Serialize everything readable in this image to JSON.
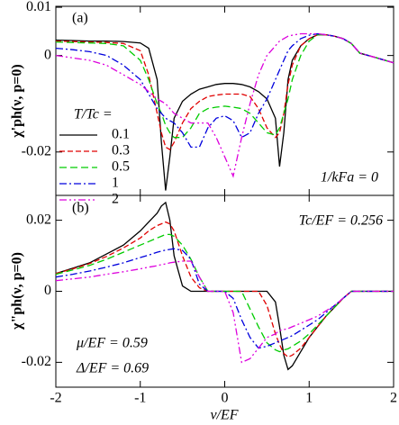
{
  "chart_data": [
    {
      "type": "line",
      "panel_label": "(a)",
      "ylabel": "χ'ph(ν, p=0)",
      "annotation": "1/kFa = 0",
      "legend_title": "T/Tc =",
      "legend": "left",
      "xlim": [
        -2,
        2
      ],
      "ylim": [
        -0.029,
        0.0102
      ],
      "yticks": [
        0.01,
        0,
        -0.02
      ],
      "x": [
        -2,
        -1.8,
        -1.6,
        -1.4,
        -1.2,
        -1,
        -0.9,
        -0.8,
        -0.75,
        -0.7,
        -0.65,
        -0.6,
        -0.5,
        -0.4,
        -0.3,
        -0.2,
        -0.1,
        0,
        0.1,
        0.2,
        0.3,
        0.4,
        0.5,
        0.6,
        0.65,
        0.7,
        0.75,
        0.8,
        0.9,
        1,
        1.1,
        1.2,
        1.3,
        1.4,
        1.5,
        1.6,
        1.8,
        2
      ],
      "series": [
        {
          "name": "0.1",
          "color": "#000000",
          "values": [
            0.0032,
            0.0031,
            0.003,
            0.003,
            0.0029,
            0.0026,
            0.0015,
            -0.005,
            -0.018,
            -0.028,
            -0.021,
            -0.013,
            -0.0095,
            -0.008,
            -0.007,
            -0.0065,
            -0.006,
            -0.0058,
            -0.0058,
            -0.006,
            -0.0065,
            -0.0075,
            -0.009,
            -0.013,
            -0.023,
            -0.016,
            -0.005,
            -0.001,
            0.002,
            0.0035,
            0.0043,
            0.0043,
            0.004,
            0.0035,
            0.0025,
            0.0005,
            -0.0005,
            -0.0015
          ]
        },
        {
          "name": "0.3",
          "color": "#e00000",
          "values": [
            0.003,
            0.0029,
            0.0028,
            0.0027,
            0.0025,
            0.001,
            -0.004,
            -0.012,
            -0.016,
            -0.019,
            -0.0195,
            -0.018,
            -0.014,
            -0.011,
            -0.0095,
            -0.0085,
            -0.0082,
            -0.008,
            -0.008,
            -0.008,
            -0.0085,
            -0.011,
            -0.015,
            -0.017,
            -0.016,
            -0.012,
            -0.006,
            -0.002,
            0.002,
            0.0035,
            0.0043,
            0.0043,
            0.004,
            0.0035,
            0.0025,
            0.0005,
            -0.0005,
            -0.0015
          ]
        },
        {
          "name": "0.5",
          "color": "#00cc00",
          "values": [
            0.0028,
            0.0027,
            0.0026,
            0.0025,
            0.002,
            -0.001,
            -0.005,
            -0.01,
            -0.012,
            -0.0145,
            -0.016,
            -0.017,
            -0.017,
            -0.015,
            -0.012,
            -0.011,
            -0.0107,
            -0.0105,
            -0.0107,
            -0.011,
            -0.012,
            -0.014,
            -0.016,
            -0.0165,
            -0.015,
            -0.012,
            -0.009,
            -0.005,
            0,
            0.003,
            0.0043,
            0.0043,
            0.004,
            0.0035,
            0.0025,
            0.0005,
            -0.0005,
            -0.0015
          ]
        },
        {
          "name": "1",
          "color": "#0000dd",
          "values": [
            0.0015,
            0.0012,
            0.0008,
            0,
            -0.002,
            -0.005,
            -0.008,
            -0.011,
            -0.012,
            -0.013,
            -0.0135,
            -0.014,
            -0.016,
            -0.019,
            -0.019,
            -0.015,
            -0.013,
            -0.0125,
            -0.0135,
            -0.017,
            -0.016,
            -0.012,
            -0.009,
            -0.005,
            -0.003,
            -0.001,
            0.001,
            0.002,
            0.0035,
            0.0042,
            0.0045,
            0.0043,
            0.004,
            0.0035,
            0.0025,
            0.0005,
            -0.0005,
            -0.0015
          ]
        },
        {
          "name": "2",
          "color": "#dd00dd",
          "values": [
            0,
            -0.0005,
            -0.001,
            -0.002,
            -0.004,
            -0.006,
            -0.0075,
            -0.009,
            -0.0095,
            -0.01,
            -0.011,
            -0.012,
            -0.013,
            -0.014,
            -0.014,
            -0.014,
            -0.017,
            -0.021,
            -0.025,
            -0.017,
            -0.01,
            -0.004,
            0,
            0.002,
            0.003,
            0.0035,
            0.004,
            0.0042,
            0.0045,
            0.0045,
            0.0045,
            0.0043,
            0.004,
            0.0035,
            0.0025,
            0.0005,
            -0.0005,
            -0.0015
          ]
        }
      ]
    },
    {
      "type": "line",
      "panel_label": "(b)",
      "ylabel": "χ\"ph(ν, p=0)",
      "xlabel": "ν/EF",
      "annotations": [
        "Tc/EF = 0.256",
        "μ/EF = 0.59",
        "Δ/EF = 0.69"
      ],
      "xlim": [
        -2,
        2
      ],
      "xticks": [
        -2,
        -1,
        0,
        1,
        2
      ],
      "ylim": [
        -0.027,
        0.027
      ],
      "yticks": [
        0.02,
        0,
        -0.02
      ],
      "x": [
        -2,
        -1.8,
        -1.6,
        -1.4,
        -1.2,
        -1,
        -0.9,
        -0.8,
        -0.75,
        -0.7,
        -0.65,
        -0.6,
        -0.5,
        -0.4,
        -0.3,
        -0.2,
        -0.1,
        0,
        0.1,
        0.2,
        0.3,
        0.4,
        0.5,
        0.6,
        0.65,
        0.7,
        0.75,
        0.8,
        0.9,
        1,
        1.1,
        1.2,
        1.3,
        1.4,
        1.5,
        1.6,
        1.8,
        2
      ],
      "series": [
        {
          "color": "#000000",
          "values": [
            0.005,
            0.0065,
            0.008,
            0.0105,
            0.013,
            0.017,
            0.0195,
            0.022,
            0.024,
            0.025,
            0.02,
            0.01,
            0.0015,
            0,
            0,
            0,
            0,
            0,
            0,
            0,
            0,
            0,
            0,
            -0.003,
            -0.01,
            -0.018,
            -0.022,
            -0.021,
            -0.017,
            -0.013,
            -0.01,
            -0.007,
            -0.0045,
            -0.002,
            0,
            0,
            0,
            0
          ]
        },
        {
          "color": "#e00000",
          "values": [
            0.005,
            0.0063,
            0.0078,
            0.0098,
            0.0122,
            0.015,
            0.017,
            0.0185,
            0.019,
            0.0195,
            0.019,
            0.017,
            0.01,
            0.004,
            0.001,
            0,
            0,
            0,
            0,
            0,
            0,
            0,
            -0.004,
            -0.012,
            -0.015,
            -0.0175,
            -0.0185,
            -0.018,
            -0.016,
            -0.013,
            -0.01,
            -0.007,
            -0.0045,
            -0.002,
            0,
            0,
            0,
            0
          ]
        },
        {
          "color": "#00cc00",
          "values": [
            0.0048,
            0.006,
            0.0073,
            0.009,
            0.011,
            0.013,
            0.014,
            0.015,
            0.0155,
            0.016,
            0.016,
            0.0155,
            0.013,
            0.009,
            0.004,
            0,
            0,
            0,
            0,
            0,
            -0.005,
            -0.01,
            -0.0145,
            -0.0165,
            -0.017,
            -0.0165,
            -0.0162,
            -0.0155,
            -0.014,
            -0.012,
            -0.0095,
            -0.007,
            -0.0045,
            -0.002,
            0,
            0,
            0,
            0
          ]
        },
        {
          "color": "#0000dd",
          "values": [
            0.004,
            0.0048,
            0.0057,
            0.0068,
            0.008,
            0.0095,
            0.0102,
            0.011,
            0.0113,
            0.0116,
            0.0118,
            0.012,
            0.0115,
            0.009,
            0.002,
            0,
            0,
            0,
            -0.002,
            -0.008,
            -0.013,
            -0.016,
            -0.0155,
            -0.0145,
            -0.014,
            -0.0135,
            -0.013,
            -0.0125,
            -0.011,
            -0.0095,
            -0.008,
            -0.006,
            -0.004,
            -0.002,
            0,
            0,
            0,
            0
          ]
        },
        {
          "color": "#dd00dd",
          "values": [
            0.003,
            0.0035,
            0.004,
            0.0048,
            0.0055,
            0.0063,
            0.0068,
            0.0072,
            0.0075,
            0.0077,
            0.008,
            0.0082,
            0.0085,
            0.0085,
            0.004,
            0,
            0,
            0,
            -0.006,
            -0.02,
            -0.019,
            -0.016,
            -0.013,
            -0.012,
            -0.011,
            -0.0108,
            -0.0105,
            -0.01,
            -0.009,
            -0.008,
            -0.007,
            -0.0055,
            -0.004,
            -0.002,
            0,
            0,
            0,
            0
          ]
        }
      ]
    }
  ]
}
